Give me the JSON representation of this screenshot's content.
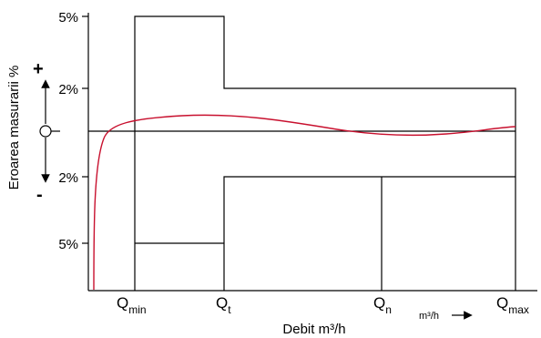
{
  "diagram": {
    "y_axis_title": "Eroarea masurarii %",
    "x_axis_title": "Debit m³/h",
    "y_tick_labels": [
      "5%",
      "2%",
      "2%",
      "5%"
    ],
    "q_labels": [
      {
        "main": "Q",
        "sub": "min"
      },
      {
        "main": "Q",
        "sub": "t"
      },
      {
        "main": "Q",
        "sub": "n"
      },
      {
        "main": "Q",
        "sub": "max"
      }
    ],
    "unit_label": "m³/h",
    "plus_sign": "+",
    "minus_sign": "-",
    "curve_color": "#c8102e",
    "line_color": "#000000"
  }
}
